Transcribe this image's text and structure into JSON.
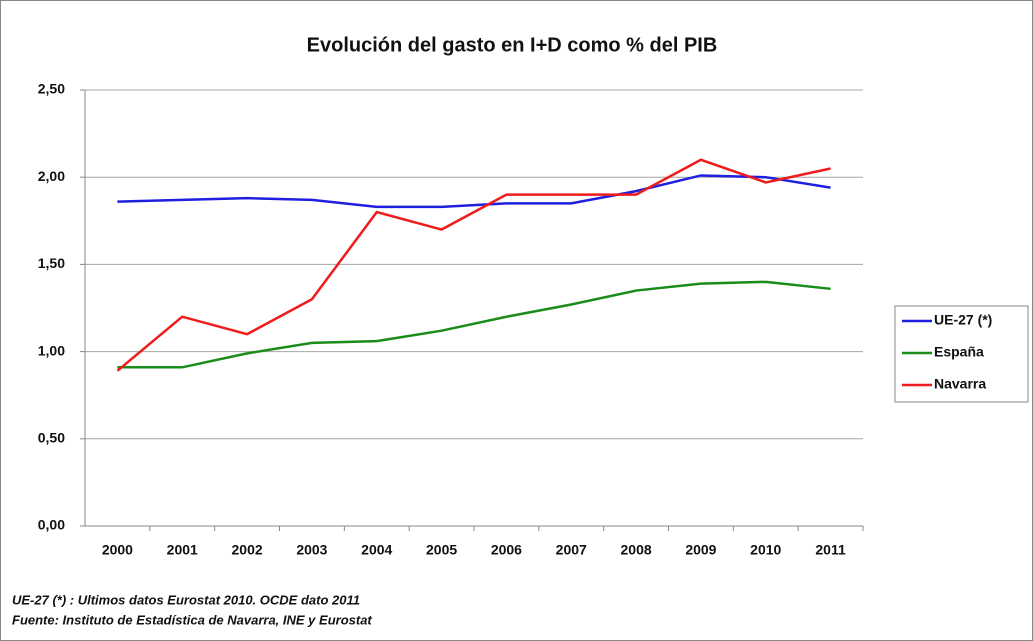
{
  "chart_data": {
    "type": "line",
    "title": "Evolución del gasto en I+D como % del PIB",
    "categories": [
      "2000",
      "2001",
      "2002",
      "2003",
      "2004",
      "2005",
      "2006",
      "2007",
      "2008",
      "2009",
      "2010",
      "2011"
    ],
    "series": [
      {
        "name": "UE-27 (*)",
        "color": "#1f1fe0",
        "values": [
          1.86,
          1.87,
          1.88,
          1.87,
          1.83,
          1.83,
          1.85,
          1.85,
          1.92,
          2.01,
          2.0,
          1.94
        ]
      },
      {
        "name": "España",
        "color": "#1a8c1a",
        "values": [
          0.91,
          0.91,
          0.99,
          1.05,
          1.06,
          1.12,
          1.2,
          1.27,
          1.35,
          1.39,
          1.4,
          1.36
        ]
      },
      {
        "name": "Navarra",
        "color": "#ee1c1c",
        "values": [
          0.89,
          1.2,
          1.1,
          1.3,
          1.8,
          1.7,
          1.9,
          1.9,
          1.9,
          2.1,
          1.97,
          2.05
        ]
      }
    ],
    "ylim": [
      0,
      2.5
    ],
    "yticks": [
      {
        "value": 0,
        "label": "0,00"
      },
      {
        "value": 0.5,
        "label": "0,50"
      },
      {
        "value": 1,
        "label": "1,00"
      },
      {
        "value": 1.5,
        "label": "1,50"
      },
      {
        "value": 2,
        "label": "2,00"
      },
      {
        "value": 2.5,
        "label": "2,50"
      }
    ],
    "grid": true,
    "legend": "right",
    "notes": [
      "UE-27 (*) : Ultimos datos Eurostat 2010. OCDE dato 2011",
      "Fuente: Instituto de Estadística de Navarra, INE y Eurostat"
    ]
  }
}
